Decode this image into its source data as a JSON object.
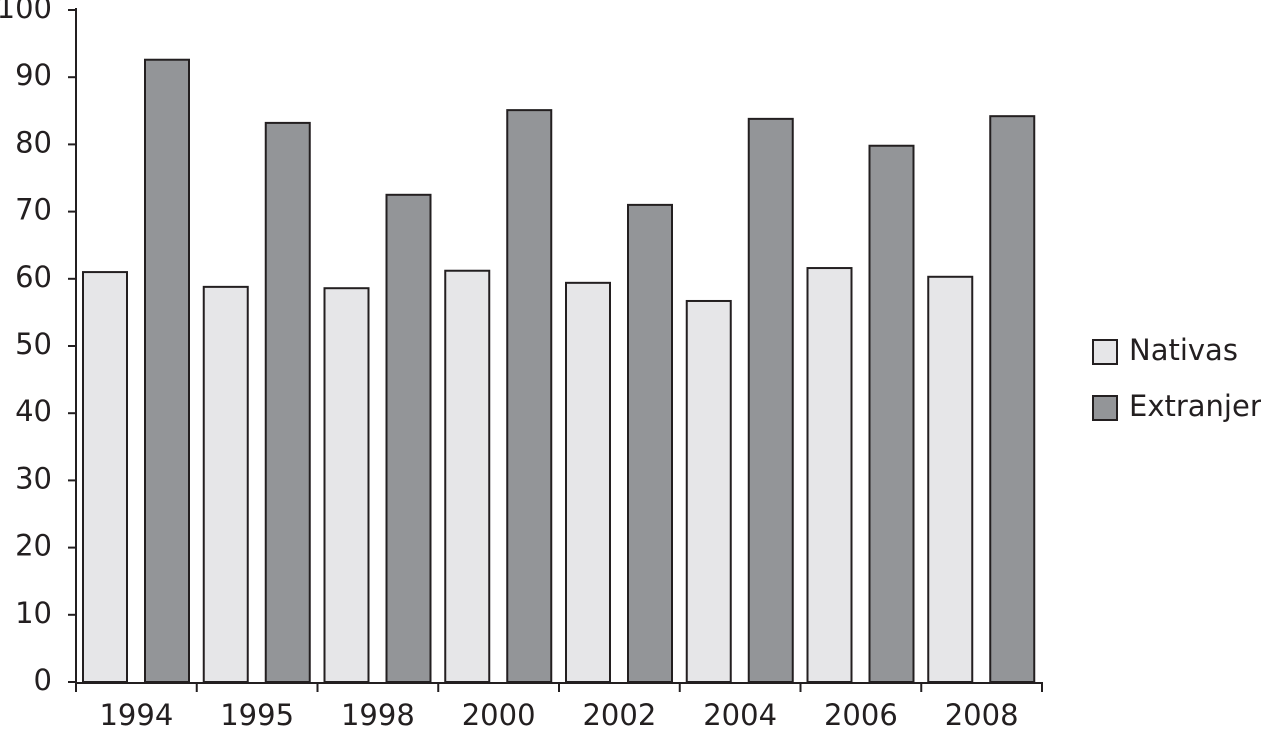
{
  "chart_data": {
    "type": "bar",
    "categories": [
      "1994",
      "1995",
      "1998",
      "2000",
      "2002",
      "2004",
      "2006",
      "2008"
    ],
    "series": [
      {
        "name": "Nativas",
        "color": "#e6e6e8",
        "values": [
          61.0,
          58.8,
          58.6,
          61.2,
          59.4,
          56.7,
          61.6,
          60.3
        ]
      },
      {
        "name": "Extranjeras",
        "color": "#939598",
        "values": [
          92.6,
          83.2,
          72.5,
          85.1,
          71.0,
          83.8,
          79.8,
          84.2
        ]
      }
    ],
    "ylim": [
      0,
      100
    ],
    "yticks": [
      0,
      10,
      20,
      30,
      40,
      50,
      60,
      70,
      80,
      90,
      100
    ],
    "grid": false,
    "legend": "right"
  }
}
